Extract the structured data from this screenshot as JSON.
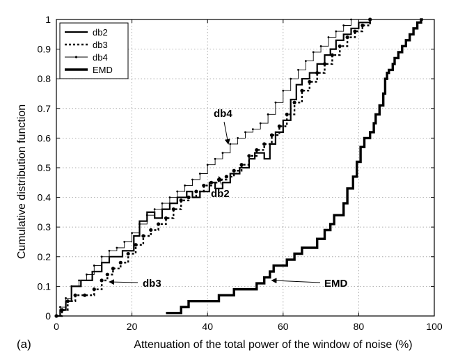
{
  "chart_data": {
    "type": "line",
    "title": "",
    "panel_label": "(a)",
    "xlabel": "Attenuation of the total power of the window of noise (%)",
    "ylabel": "Cumulative distribution function",
    "xlim": [
      0,
      100
    ],
    "ylim": [
      0,
      1
    ],
    "x_ticks": [
      "0",
      "20",
      "40",
      "60",
      "80",
      "100"
    ],
    "y_ticks": [
      "0",
      "0.1",
      "0.2",
      "0.3",
      "0.4",
      "0.5",
      "0.6",
      "0.7",
      "0.8",
      "0.9",
      "1"
    ],
    "grid": true,
    "legend_position": "top-left",
    "series": [
      {
        "name": "db2",
        "style": "step",
        "x": [
          0,
          1,
          2.5,
          4,
          6.5,
          9.5,
          12,
          14,
          17.5,
          20.5,
          22,
          24,
          26,
          28,
          30,
          32,
          34.5,
          36,
          38,
          40.5,
          42,
          44,
          46,
          48.5,
          51,
          52.5,
          55,
          56.5,
          58,
          60,
          62,
          63.5,
          65,
          67,
          69,
          71,
          72.5,
          74,
          76,
          78,
          80,
          83
        ],
        "y": [
          0,
          0.02,
          0.05,
          0.1,
          0.12,
          0.15,
          0.18,
          0.2,
          0.22,
          0.27,
          0.32,
          0.35,
          0.33,
          0.36,
          0.38,
          0.4,
          0.42,
          0.4,
          0.42,
          0.45,
          0.43,
          0.45,
          0.48,
          0.5,
          0.53,
          0.55,
          0.53,
          0.58,
          0.62,
          0.66,
          0.73,
          0.78,
          0.8,
          0.82,
          0.85,
          0.88,
          0.9,
          0.93,
          0.95,
          0.97,
          0.99,
          1.0
        ]
      },
      {
        "name": "db3",
        "style": "dotted-thick",
        "x": [
          0,
          1.5,
          3,
          5,
          7.5,
          10,
          12,
          13.5,
          15,
          17,
          19,
          21,
          23,
          25,
          27,
          29,
          31,
          33,
          35,
          37,
          39,
          41,
          43,
          45,
          47,
          49,
          51,
          53,
          55,
          57,
          59,
          61,
          63,
          65,
          67,
          69,
          71,
          73,
          75,
          77,
          79,
          81,
          83
        ],
        "y": [
          0,
          0.02,
          0.05,
          0.07,
          0.07,
          0.09,
          0.12,
          0.14,
          0.16,
          0.18,
          0.21,
          0.24,
          0.27,
          0.29,
          0.31,
          0.33,
          0.36,
          0.39,
          0.4,
          0.42,
          0.44,
          0.45,
          0.46,
          0.47,
          0.49,
          0.51,
          0.54,
          0.56,
          0.58,
          0.61,
          0.64,
          0.68,
          0.72,
          0.76,
          0.79,
          0.82,
          0.85,
          0.88,
          0.91,
          0.94,
          0.96,
          0.98,
          1.0
        ]
      },
      {
        "name": "db4",
        "style": "thin-with-dots",
        "x": [
          0,
          1,
          2.5,
          4,
          6,
          8,
          10,
          12,
          14,
          16,
          18,
          20,
          22,
          24,
          26,
          28,
          30,
          32,
          34,
          36,
          38,
          40,
          42,
          44,
          46,
          48,
          50,
          52,
          54,
          56,
          58,
          60,
          62,
          64,
          66,
          68,
          70,
          72,
          74,
          76,
          78
        ],
        "y": [
          0,
          0.03,
          0.06,
          0.1,
          0.12,
          0.14,
          0.17,
          0.2,
          0.22,
          0.23,
          0.25,
          0.28,
          0.31,
          0.34,
          0.36,
          0.38,
          0.4,
          0.42,
          0.44,
          0.46,
          0.48,
          0.51,
          0.53,
          0.55,
          0.58,
          0.6,
          0.62,
          0.63,
          0.65,
          0.68,
          0.72,
          0.76,
          0.8,
          0.83,
          0.86,
          0.89,
          0.91,
          0.94,
          0.96,
          0.98,
          1.0
        ]
      },
      {
        "name": "EMD",
        "style": "step-thick",
        "x": [
          29,
          33,
          35,
          43,
          47,
          53,
          55,
          56.5,
          57.5,
          58.5,
          61,
          63,
          65,
          69,
          71,
          72.5,
          73.5,
          76,
          77,
          78.5,
          79.5,
          80.5,
          81.5,
          83,
          84,
          84.5,
          85.5,
          86.5,
          87,
          87.5,
          88,
          89,
          89.5,
          90.5,
          91.5,
          92.5,
          93.5,
          94.5,
          95.5,
          96.5,
          97
        ],
        "y": [
          0.01,
          0.03,
          0.05,
          0.07,
          0.09,
          0.11,
          0.13,
          0.15,
          0.17,
          0.17,
          0.19,
          0.21,
          0.23,
          0.26,
          0.29,
          0.31,
          0.34,
          0.38,
          0.43,
          0.47,
          0.52,
          0.57,
          0.6,
          0.62,
          0.65,
          0.68,
          0.71,
          0.75,
          0.8,
          0.82,
          0.83,
          0.85,
          0.87,
          0.89,
          0.91,
          0.93,
          0.95,
          0.97,
          0.99,
          1.0,
          1.0
        ]
      }
    ],
    "annotations": [
      {
        "text": "db4",
        "target": [
          45.5,
          0.58
        ]
      },
      {
        "text": "db2",
        "target": [
          43,
          0.47
        ]
      },
      {
        "text": "db3",
        "target": [
          14,
          0.115
        ]
      },
      {
        "text": "EMD",
        "target": [
          57,
          0.12
        ]
      }
    ]
  }
}
